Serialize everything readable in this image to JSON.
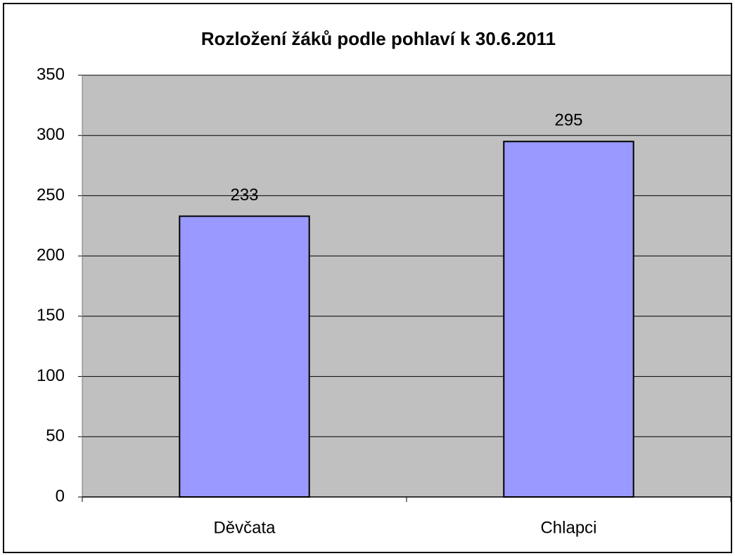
{
  "chart_data": {
    "type": "bar",
    "title": "Rozložení žáků podle pohlaví k 30.6.2011",
    "categories": [
      "Děvčata",
      "Chlapci"
    ],
    "values": [
      233,
      295
    ],
    "color": "#9999ff",
    "ylim": [
      0,
      350
    ],
    "yticks": [
      0,
      50,
      100,
      150,
      200,
      250,
      300,
      350
    ],
    "grid": true
  }
}
